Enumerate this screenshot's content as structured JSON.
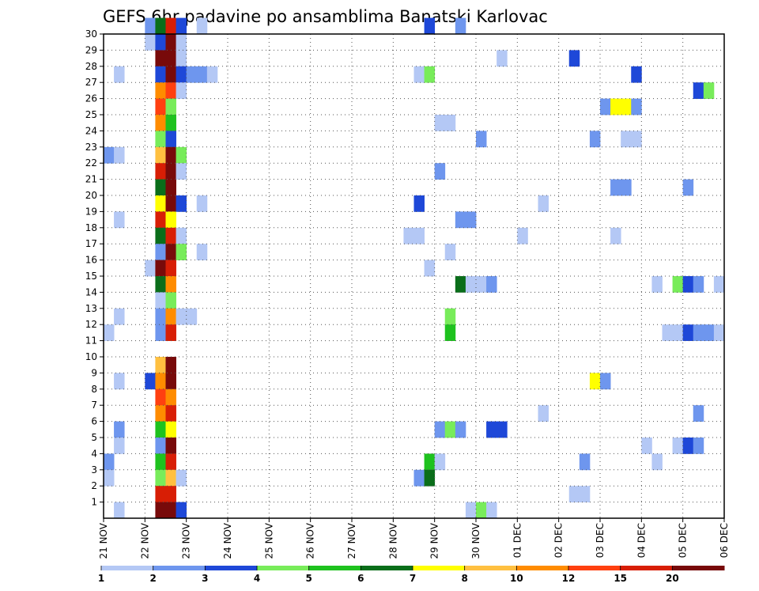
{
  "chart_data": {
    "type": "heatmap",
    "title": "GEFS 6hr padavine po ansamblima Banatski Karlovac",
    "xlabel": "",
    "ylabel": "",
    "x_ticks": [
      "21 NOV",
      "22 NOV",
      "23 NOV",
      "24 NOV",
      "25 NOV",
      "26 NOV",
      "27 NOV",
      "28 NOV",
      "29 NOV",
      "30 NOV",
      "01 DEC",
      "02 DEC",
      "03 DEC",
      "04 DEC",
      "05 DEC",
      "06 DEC"
    ],
    "x_unit": "6-hour steps from 21 NOV",
    "xlim": [
      0,
      60
    ],
    "y_ticks": [
      1,
      2,
      3,
      4,
      5,
      6,
      7,
      8,
      9,
      10,
      11,
      12,
      13,
      14,
      15,
      16,
      17,
      18,
      19,
      20,
      21,
      22,
      23,
      24,
      25,
      26,
      27,
      28,
      29,
      30
    ],
    "ylim": [
      0,
      30
    ],
    "grid": true,
    "colorbar": {
      "labels": [
        "1",
        "2",
        "3",
        "4",
        "5",
        "6",
        "7",
        "8",
        "10",
        "12",
        "15",
        "20"
      ],
      "colors": [
        "#b4c8f5",
        "#6e96ee",
        "#1e48d8",
        "#78ec5a",
        "#1ec21e",
        "#0a6e1a",
        "#ffff00",
        "#ffc040",
        "#ff8c00",
        "#ff4010",
        "#d81e05",
        "#780a0a"
      ]
    },
    "cells": [
      {
        "member": 30,
        "step": 4,
        "cls": 2
      },
      {
        "member": 30,
        "step": 5,
        "cls": 6
      },
      {
        "member": 30,
        "step": 6,
        "cls": 11
      },
      {
        "member": 30,
        "step": 7,
        "cls": 3
      },
      {
        "member": 30,
        "step": 9,
        "cls": 1
      },
      {
        "member": 30,
        "step": 31,
        "cls": 3
      },
      {
        "member": 30,
        "step": 34,
        "cls": 2
      },
      {
        "member": 29,
        "step": 4,
        "cls": 1
      },
      {
        "member": 29,
        "step": 5,
        "cls": 3
      },
      {
        "member": 29,
        "step": 6,
        "cls": 12
      },
      {
        "member": 29,
        "step": 7,
        "cls": 1
      },
      {
        "member": 28,
        "step": 5,
        "cls": 12
      },
      {
        "member": 28,
        "step": 6,
        "cls": 12
      },
      {
        "member": 28,
        "step": 7,
        "cls": 1
      },
      {
        "member": 28,
        "step": 38,
        "cls": 1
      },
      {
        "member": 28,
        "step": 45,
        "cls": 3
      },
      {
        "member": 27,
        "step": 1,
        "cls": 1
      },
      {
        "member": 27,
        "step": 5,
        "cls": 3
      },
      {
        "member": 27,
        "step": 6,
        "cls": 12
      },
      {
        "member": 27,
        "step": 7,
        "cls": 3
      },
      {
        "member": 27,
        "step": 8,
        "cls": 2
      },
      {
        "member": 27,
        "step": 9,
        "cls": 2
      },
      {
        "member": 27,
        "step": 10,
        "cls": 1
      },
      {
        "member": 27,
        "step": 30,
        "cls": 1
      },
      {
        "member": 27,
        "step": 31,
        "cls": 4
      },
      {
        "member": 27,
        "step": 51,
        "cls": 3
      },
      {
        "member": 26,
        "step": 5,
        "cls": 9
      },
      {
        "member": 26,
        "step": 6,
        "cls": 10
      },
      {
        "member": 26,
        "step": 7,
        "cls": 1
      },
      {
        "member": 26,
        "step": 57,
        "cls": 3
      },
      {
        "member": 26,
        "step": 58,
        "cls": 4
      },
      {
        "member": 25,
        "step": 5,
        "cls": 10
      },
      {
        "member": 25,
        "step": 6,
        "cls": 4
      },
      {
        "member": 25,
        "step": 48,
        "cls": 2
      },
      {
        "member": 25,
        "step": 49,
        "cls": 7
      },
      {
        "member": 25,
        "step": 50,
        "cls": 7
      },
      {
        "member": 25,
        "step": 51,
        "cls": 2
      },
      {
        "member": 24,
        "step": 5,
        "cls": 9
      },
      {
        "member": 24,
        "step": 6,
        "cls": 5
      },
      {
        "member": 24,
        "step": 32,
        "cls": 1
      },
      {
        "member": 24,
        "step": 33,
        "cls": 1
      },
      {
        "member": 23,
        "step": 5,
        "cls": 4
      },
      {
        "member": 23,
        "step": 6,
        "cls": 3
      },
      {
        "member": 23,
        "step": 36,
        "cls": 2
      },
      {
        "member": 23,
        "step": 47,
        "cls": 2
      },
      {
        "member": 23,
        "step": 50,
        "cls": 1
      },
      {
        "member": 23,
        "step": 51,
        "cls": 1
      },
      {
        "member": 22,
        "step": 0,
        "cls": 2
      },
      {
        "member": 22,
        "step": 1,
        "cls": 1
      },
      {
        "member": 22,
        "step": 5,
        "cls": 8
      },
      {
        "member": 22,
        "step": 6,
        "cls": 12
      },
      {
        "member": 22,
        "step": 7,
        "cls": 4
      },
      {
        "member": 21,
        "step": 5,
        "cls": 11
      },
      {
        "member": 21,
        "step": 6,
        "cls": 12
      },
      {
        "member": 21,
        "step": 7,
        "cls": 1
      },
      {
        "member": 21,
        "step": 32,
        "cls": 2
      },
      {
        "member": 20,
        "step": 5,
        "cls": 6
      },
      {
        "member": 20,
        "step": 6,
        "cls": 12
      },
      {
        "member": 20,
        "step": 49,
        "cls": 2
      },
      {
        "member": 20,
        "step": 50,
        "cls": 2
      },
      {
        "member": 20,
        "step": 56,
        "cls": 2
      },
      {
        "member": 19,
        "step": 5,
        "cls": 7
      },
      {
        "member": 19,
        "step": 6,
        "cls": 12
      },
      {
        "member": 19,
        "step": 7,
        "cls": 3
      },
      {
        "member": 19,
        "step": 9,
        "cls": 1
      },
      {
        "member": 19,
        "step": 30,
        "cls": 3
      },
      {
        "member": 19,
        "step": 42,
        "cls": 1
      },
      {
        "member": 18,
        "step": 1,
        "cls": 1
      },
      {
        "member": 18,
        "step": 5,
        "cls": 11
      },
      {
        "member": 18,
        "step": 6,
        "cls": 7
      },
      {
        "member": 18,
        "step": 34,
        "cls": 2
      },
      {
        "member": 18,
        "step": 35,
        "cls": 2
      },
      {
        "member": 17,
        "step": 5,
        "cls": 6
      },
      {
        "member": 17,
        "step": 6,
        "cls": 11
      },
      {
        "member": 17,
        "step": 7,
        "cls": 1
      },
      {
        "member": 17,
        "step": 29,
        "cls": 1
      },
      {
        "member": 17,
        "step": 30,
        "cls": 1
      },
      {
        "member": 17,
        "step": 40,
        "cls": 1
      },
      {
        "member": 17,
        "step": 49,
        "cls": 1
      },
      {
        "member": 16,
        "step": 5,
        "cls": 2
      },
      {
        "member": 16,
        "step": 6,
        "cls": 12
      },
      {
        "member": 16,
        "step": 7,
        "cls": 4
      },
      {
        "member": 16,
        "step": 9,
        "cls": 1
      },
      {
        "member": 16,
        "step": 33,
        "cls": 1
      },
      {
        "member": 15,
        "step": 4,
        "cls": 1
      },
      {
        "member": 15,
        "step": 5,
        "cls": 12
      },
      {
        "member": 15,
        "step": 6,
        "cls": 11
      },
      {
        "member": 15,
        "step": 31,
        "cls": 1
      },
      {
        "member": 14,
        "step": 5,
        "cls": 6
      },
      {
        "member": 14,
        "step": 6,
        "cls": 9
      },
      {
        "member": 14,
        "step": 34,
        "cls": 6
      },
      {
        "member": 14,
        "step": 35,
        "cls": 1
      },
      {
        "member": 14,
        "step": 36,
        "cls": 1
      },
      {
        "member": 14,
        "step": 37,
        "cls": 2
      },
      {
        "member": 14,
        "step": 53,
        "cls": 1
      },
      {
        "member": 14,
        "step": 55,
        "cls": 4
      },
      {
        "member": 14,
        "step": 56,
        "cls": 3
      },
      {
        "member": 14,
        "step": 57,
        "cls": 2
      },
      {
        "member": 14,
        "step": 59,
        "cls": 1
      },
      {
        "member": 13,
        "step": 5,
        "cls": 1
      },
      {
        "member": 13,
        "step": 6,
        "cls": 4
      },
      {
        "member": 12,
        "step": 1,
        "cls": 1
      },
      {
        "member": 12,
        "step": 5,
        "cls": 2
      },
      {
        "member": 12,
        "step": 6,
        "cls": 9
      },
      {
        "member": 12,
        "step": 7,
        "cls": 1
      },
      {
        "member": 12,
        "step": 8,
        "cls": 1
      },
      {
        "member": 12,
        "step": 33,
        "cls": 4
      },
      {
        "member": 11,
        "step": 0,
        "cls": 1
      },
      {
        "member": 11,
        "step": 5,
        "cls": 2
      },
      {
        "member": 11,
        "step": 6,
        "cls": 11
      },
      {
        "member": 11,
        "step": 33,
        "cls": 5
      },
      {
        "member": 11,
        "step": 54,
        "cls": 1
      },
      {
        "member": 11,
        "step": 55,
        "cls": 1
      },
      {
        "member": 11,
        "step": 56,
        "cls": 3
      },
      {
        "member": 11,
        "step": 57,
        "cls": 2
      },
      {
        "member": 11,
        "step": 58,
        "cls": 2
      },
      {
        "member": 11,
        "step": 59,
        "cls": 1
      },
      {
        "member": 9,
        "step": 5,
        "cls": 8
      },
      {
        "member": 9,
        "step": 6,
        "cls": 12
      },
      {
        "member": 8,
        "step": 1,
        "cls": 1
      },
      {
        "member": 8,
        "step": 4,
        "cls": 3
      },
      {
        "member": 8,
        "step": 5,
        "cls": 9
      },
      {
        "member": 8,
        "step": 6,
        "cls": 12
      },
      {
        "member": 8,
        "step": 47,
        "cls": 7
      },
      {
        "member": 8,
        "step": 48,
        "cls": 2
      },
      {
        "member": 7,
        "step": 5,
        "cls": 10
      },
      {
        "member": 7,
        "step": 6,
        "cls": 9
      },
      {
        "member": 6,
        "step": 5,
        "cls": 9
      },
      {
        "member": 6,
        "step": 6,
        "cls": 11
      },
      {
        "member": 6,
        "step": 42,
        "cls": 1
      },
      {
        "member": 6,
        "step": 57,
        "cls": 2
      },
      {
        "member": 5,
        "step": 1,
        "cls": 2
      },
      {
        "member": 5,
        "step": 5,
        "cls": 5
      },
      {
        "member": 5,
        "step": 6,
        "cls": 7
      },
      {
        "member": 5,
        "step": 32,
        "cls": 2
      },
      {
        "member": 5,
        "step": 33,
        "cls": 4
      },
      {
        "member": 5,
        "step": 34,
        "cls": 2
      },
      {
        "member": 5,
        "step": 37,
        "cls": 3
      },
      {
        "member": 5,
        "step": 38,
        "cls": 3
      },
      {
        "member": 4,
        "step": 1,
        "cls": 1
      },
      {
        "member": 4,
        "step": 5,
        "cls": 2
      },
      {
        "member": 4,
        "step": 6,
        "cls": 12
      },
      {
        "member": 4,
        "step": 52,
        "cls": 1
      },
      {
        "member": 4,
        "step": 55,
        "cls": 1
      },
      {
        "member": 4,
        "step": 56,
        "cls": 3
      },
      {
        "member": 4,
        "step": 57,
        "cls": 2
      },
      {
        "member": 3,
        "step": 0,
        "cls": 2
      },
      {
        "member": 3,
        "step": 5,
        "cls": 5
      },
      {
        "member": 3,
        "step": 6,
        "cls": 11
      },
      {
        "member": 3,
        "step": 31,
        "cls": 5
      },
      {
        "member": 3,
        "step": 32,
        "cls": 1
      },
      {
        "member": 3,
        "step": 46,
        "cls": 2
      },
      {
        "member": 3,
        "step": 53,
        "cls": 1
      },
      {
        "member": 2,
        "step": 0,
        "cls": 1
      },
      {
        "member": 2,
        "step": 5,
        "cls": 4
      },
      {
        "member": 2,
        "step": 6,
        "cls": 8
      },
      {
        "member": 2,
        "step": 7,
        "cls": 1
      },
      {
        "member": 2,
        "step": 30,
        "cls": 2
      },
      {
        "member": 2,
        "step": 31,
        "cls": 6
      },
      {
        "member": 1,
        "step": 5,
        "cls": 11
      },
      {
        "member": 1,
        "step": 6,
        "cls": 11
      },
      {
        "member": 1,
        "step": 45,
        "cls": 1
      },
      {
        "member": 1,
        "step": 46,
        "cls": 1
      },
      {
        "member": 0,
        "step": 1,
        "cls": 1
      },
      {
        "member": 0,
        "step": 5,
        "cls": 12
      },
      {
        "member": 0,
        "step": 6,
        "cls": 12
      },
      {
        "member": 0,
        "step": 7,
        "cls": 3
      },
      {
        "member": 0,
        "step": 35,
        "cls": 1
      },
      {
        "member": 0,
        "step": 36,
        "cls": 4
      },
      {
        "member": 0,
        "step": 37,
        "cls": 1
      }
    ]
  }
}
